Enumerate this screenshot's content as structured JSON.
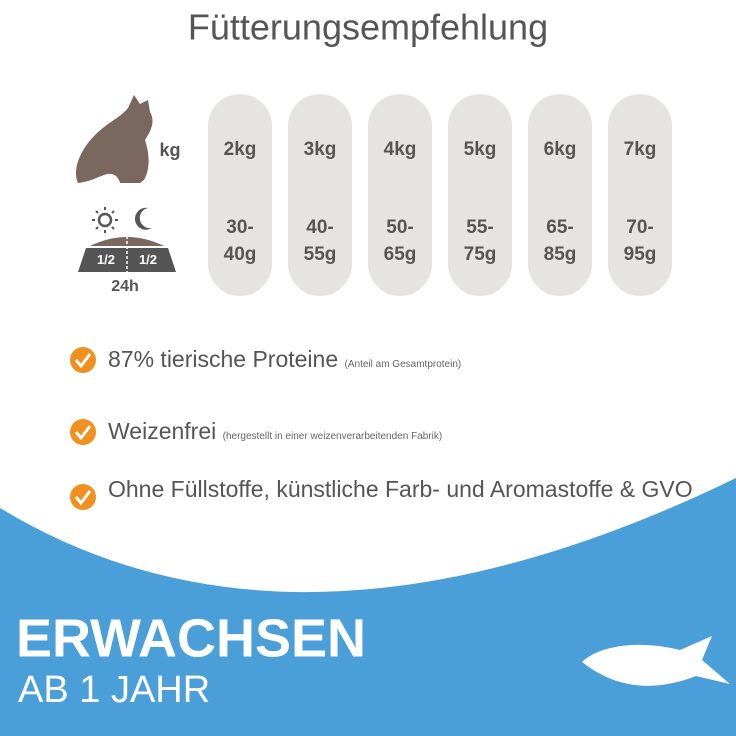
{
  "title": "Fütterungsempfehlung",
  "weight_unit": "kg",
  "bowl": {
    "halves": [
      "1/2",
      "1/2"
    ],
    "period": "24h"
  },
  "columns": [
    {
      "weight": "2kg",
      "amount": [
        "30-",
        "40g"
      ]
    },
    {
      "weight": "3kg",
      "amount": [
        "40-",
        "55g"
      ]
    },
    {
      "weight": "4kg",
      "amount": [
        "50-",
        "65g"
      ]
    },
    {
      "weight": "5kg",
      "amount": [
        "55-",
        "75g"
      ]
    },
    {
      "weight": "6kg",
      "amount": [
        "65-",
        "85g"
      ]
    },
    {
      "weight": "7kg",
      "amount": [
        "70-",
        "95g"
      ]
    }
  ],
  "features": [
    {
      "text": "87% tierische Proteine",
      "note": "(Anteil am Gesamtprotein)"
    },
    {
      "text": "Weizenfrei",
      "note": "(hergestellt in einer weizenverarbeitenden Fabrik)"
    },
    {
      "text": "Ohne Füllstoffe, künstliche Farb- und Aromastoffe & GVO"
    }
  ],
  "banner": {
    "title": "ERWACHSEN",
    "subtitle": "AB 1 JAHR"
  }
}
